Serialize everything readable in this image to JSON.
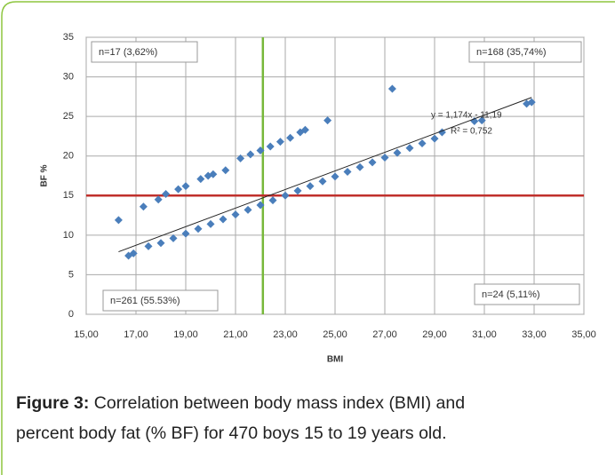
{
  "chart_data": {
    "type": "scatter",
    "xlabel": "BMI",
    "ylabel": "BF %",
    "x": [
      16.7,
      16.9,
      17.5,
      18.0,
      18.5,
      19.0,
      19.5,
      20.0,
      20.5,
      21.0,
      21.5,
      22.0,
      22.5,
      23.0,
      23.5,
      24.0,
      24.5,
      25.0,
      25.5,
      26.0,
      26.5,
      27.0,
      27.5,
      28.0,
      28.5,
      29.0,
      29.3,
      30.6,
      30.9,
      32.7,
      32.9,
      16.3,
      17.3,
      17.9,
      18.2,
      18.7,
      19.0,
      19.6,
      19.9,
      20.1,
      20.6,
      21.2,
      21.6,
      22.0,
      22.4,
      22.8,
      23.2,
      23.6,
      23.8,
      24.7,
      27.3
    ],
    "y": [
      7.4,
      7.7,
      8.6,
      9.0,
      9.6,
      10.2,
      10.8,
      11.4,
      12.0,
      12.6,
      13.2,
      13.8,
      14.4,
      15.0,
      15.6,
      16.2,
      16.8,
      17.4,
      18.0,
      18.6,
      19.2,
      19.8,
      20.4,
      21.0,
      21.6,
      22.2,
      23.0,
      24.4,
      24.5,
      26.6,
      26.8,
      11.9,
      13.6,
      14.5,
      15.2,
      15.8,
      16.2,
      17.1,
      17.5,
      17.7,
      18.2,
      19.7,
      20.2,
      20.7,
      21.2,
      21.8,
      22.3,
      23.0,
      23.3,
      24.5,
      28.5
    ],
    "color": "#4a7ebb",
    "xlim": [
      15,
      35
    ],
    "xticks": [
      {
        "value": 15,
        "label": "15,00"
      },
      {
        "value": 17,
        "label": "17,00"
      },
      {
        "value": 19,
        "label": "19,00"
      },
      {
        "value": 21,
        "label": "21,00"
      },
      {
        "value": 23,
        "label": "23,00"
      },
      {
        "value": 25,
        "label": "25,00"
      },
      {
        "value": 27,
        "label": "27,00"
      },
      {
        "value": 29,
        "label": "29,00"
      },
      {
        "value": 31,
        "label": "31,00"
      },
      {
        "value": 33,
        "label": "33,00"
      },
      {
        "value": 35,
        "label": "35,00"
      }
    ],
    "ylim": [
      0,
      35
    ],
    "yticks": [
      0,
      5,
      10,
      15,
      20,
      25,
      30,
      35
    ],
    "grid": true,
    "trendline": {
      "x": [
        16.3,
        32.9
      ],
      "y": [
        7.9,
        27.4
      ],
      "color": "#222222",
      "equation": "y = 1,174x - 11,19",
      "r2": "R² = 0,752"
    },
    "vline": {
      "x": 22.1,
      "color": "#77b83a"
    },
    "hline": {
      "y": 15,
      "color": "#c0302c"
    },
    "annotations": [
      "n=17 (3,62%)",
      "n=168 (35,74%)",
      "n=261 (55.53%)",
      "n=24 (5,11%)"
    ]
  },
  "caption": {
    "label": "Figure 3:",
    "text": " Correlation between body mass index (BMI) and",
    "text2": "percent body fat (% BF) for 470 boys 15 to 19 years old."
  }
}
